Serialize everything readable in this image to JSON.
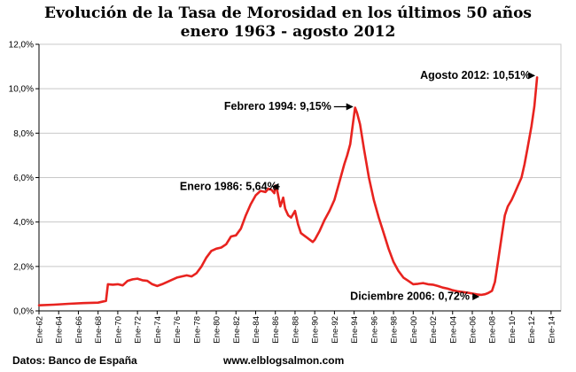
{
  "chart_data": {
    "type": "line",
    "title_line1": "Evolución de la Tasa de Morosidad en los últimos 50 años",
    "title_line2": "enero 1963 - agosto 2012",
    "xlabel": "",
    "ylabel": "",
    "ylim": [
      0,
      12
    ],
    "yticks": [
      "0,0%",
      "2,0%",
      "4,0%",
      "6,0%",
      "8,0%",
      "10,0%",
      "12,0%"
    ],
    "ytick_values": [
      0,
      2,
      4,
      6,
      8,
      10,
      12
    ],
    "xlim": [
      1962,
      2015
    ],
    "xticks": [
      "Ene-62",
      "Ene-64",
      "Ene-66",
      "Ene-68",
      "Ene-70",
      "Ene-72",
      "Ene-74",
      "Ene-76",
      "Ene-78",
      "Ene-80",
      "Ene-82",
      "Ene-84",
      "Ene-86",
      "Ene-88",
      "Ene-90",
      "Ene-92",
      "Ene-94",
      "Ene-96",
      "Ene-98",
      "Ene-00",
      "Ene-02",
      "Ene-04",
      "Ene-06",
      "Ene-08",
      "Ene-10",
      "Ene-12",
      "Ene-14"
    ],
    "xtick_values": [
      1962,
      1964,
      1966,
      1968,
      1970,
      1972,
      1974,
      1976,
      1978,
      1980,
      1982,
      1984,
      1986,
      1988,
      1990,
      1992,
      1994,
      1996,
      1998,
      2000,
      2002,
      2004,
      2006,
      2008,
      2010,
      2012,
      2014
    ],
    "grid": true,
    "series": [
      {
        "name": "Tasa de Morosidad",
        "color": "#e8231f",
        "x": [
          1962.0,
          1963.5,
          1965.0,
          1966.5,
          1968.0,
          1968.8,
          1969.0,
          1969.5,
          1970.0,
          1970.5,
          1971.0,
          1971.5,
          1972.0,
          1972.5,
          1973.0,
          1973.5,
          1974.0,
          1974.5,
          1975.0,
          1975.5,
          1976.0,
          1976.5,
          1977.0,
          1977.5,
          1978.0,
          1978.5,
          1979.0,
          1979.5,
          1980.0,
          1980.5,
          1981.0,
          1981.5,
          1982.0,
          1982.5,
          1983.0,
          1983.5,
          1984.0,
          1984.5,
          1985.0,
          1985.3,
          1985.6,
          1985.9,
          1986.0,
          1986.2,
          1986.5,
          1986.8,
          1987.0,
          1987.3,
          1987.6,
          1988.0,
          1988.3,
          1988.6,
          1988.9,
          1989.2,
          1989.5,
          1989.8,
          1990.0,
          1990.5,
          1991.0,
          1991.5,
          1992.0,
          1992.5,
          1993.0,
          1993.3,
          1993.6,
          1993.9,
          1994.1,
          1994.3,
          1994.6,
          1995.0,
          1995.5,
          1996.0,
          1996.5,
          1997.0,
          1997.5,
          1998.0,
          1998.5,
          1999.0,
          1999.5,
          2000.0,
          2000.5,
          2001.0,
          2001.5,
          2002.0,
          2002.5,
          2003.0,
          2003.5,
          2004.0,
          2004.5,
          2005.0,
          2005.5,
          2006.0,
          2006.5,
          2006.92,
          2007.3,
          2007.6,
          2008.0,
          2008.3,
          2008.6,
          2009.0,
          2009.3,
          2009.6,
          2010.0,
          2010.3,
          2010.6,
          2011.0,
          2011.3,
          2011.6,
          2012.0,
          2012.3,
          2012.58
        ],
        "values": [
          0.25,
          0.28,
          0.32,
          0.35,
          0.37,
          0.45,
          1.2,
          1.18,
          1.2,
          1.15,
          1.35,
          1.42,
          1.45,
          1.38,
          1.35,
          1.2,
          1.12,
          1.2,
          1.3,
          1.4,
          1.5,
          1.55,
          1.6,
          1.55,
          1.7,
          2.0,
          2.4,
          2.7,
          2.8,
          2.85,
          3.0,
          3.35,
          3.4,
          3.7,
          4.3,
          4.8,
          5.2,
          5.4,
          5.35,
          5.5,
          5.45,
          5.3,
          5.64,
          5.4,
          4.7,
          5.1,
          4.6,
          4.3,
          4.2,
          4.5,
          3.9,
          3.5,
          3.4,
          3.3,
          3.2,
          3.1,
          3.2,
          3.6,
          4.1,
          4.5,
          5.0,
          5.8,
          6.6,
          7.0,
          7.5,
          8.5,
          9.15,
          8.9,
          8.4,
          7.3,
          6.0,
          5.0,
          4.2,
          3.5,
          2.8,
          2.2,
          1.8,
          1.5,
          1.35,
          1.2,
          1.22,
          1.25,
          1.2,
          1.18,
          1.12,
          1.05,
          1.0,
          0.93,
          0.88,
          0.85,
          0.82,
          0.78,
          0.74,
          0.72,
          0.75,
          0.8,
          0.9,
          1.3,
          2.2,
          3.4,
          4.3,
          4.7,
          5.0,
          5.3,
          5.6,
          6.0,
          6.6,
          7.3,
          8.3,
          9.2,
          10.51
        ]
      }
    ],
    "annotations": [
      {
        "text": "Enero 1986: 5,64%",
        "x": 1986.0,
        "y": 5.64
      },
      {
        "text": "Febrero 1994: 9,15%",
        "x": 1994.1,
        "y": 9.15
      },
      {
        "text": "Diciembre 2006: 0,72%",
        "x": 2006.92,
        "y": 0.72
      },
      {
        "text": "Agosto 2012: 10,51%",
        "x": 2012.58,
        "y": 10.51
      }
    ],
    "footer_left": "Datos: Banco de España",
    "footer_right": "www.elblogsalmon.com"
  }
}
